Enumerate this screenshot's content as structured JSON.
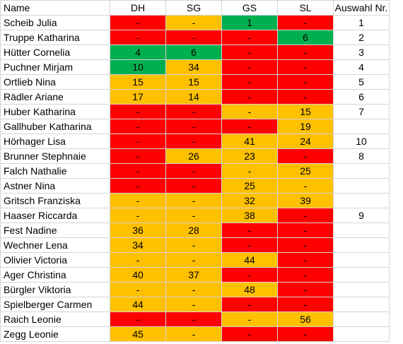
{
  "columns": [
    "Name",
    "DH",
    "SG",
    "GS",
    "SL",
    "Auswahl Nr."
  ],
  "colors": {
    "red": "#ff0000",
    "orange": "#ffc000",
    "green": "#00b050"
  },
  "rows": [
    {
      "name": "Scheib Julia",
      "cells": [
        [
          "-",
          "r"
        ],
        [
          "-",
          "o"
        ],
        [
          "1",
          "g"
        ],
        [
          "-",
          "r"
        ]
      ],
      "auswahl": "1"
    },
    {
      "name": "Truppe Katharina",
      "cells": [
        [
          "-",
          "r"
        ],
        [
          "-",
          "r"
        ],
        [
          "-",
          "r"
        ],
        [
          "6",
          "g"
        ]
      ],
      "auswahl": "2"
    },
    {
      "name": "Hütter Cornelia",
      "cells": [
        [
          "4",
          "g"
        ],
        [
          "6",
          "g"
        ],
        [
          "-",
          "r"
        ],
        [
          "-",
          "r"
        ]
      ],
      "auswahl": "3"
    },
    {
      "name": "Puchner Mirjam",
      "cells": [
        [
          "10",
          "g"
        ],
        [
          "34",
          "o"
        ],
        [
          "-",
          "r"
        ],
        [
          "-",
          "r"
        ]
      ],
      "auswahl": "4"
    },
    {
      "name": "Ortlieb Nina",
      "cells": [
        [
          "15",
          "o"
        ],
        [
          "15",
          "o"
        ],
        [
          "-",
          "r"
        ],
        [
          "-",
          "r"
        ]
      ],
      "auswahl": "5"
    },
    {
      "name": "Rädler Ariane",
      "cells": [
        [
          "17",
          "o"
        ],
        [
          "14",
          "o"
        ],
        [
          "-",
          "r"
        ],
        [
          "-",
          "r"
        ]
      ],
      "auswahl": "6"
    },
    {
      "name": "Huber Katharina",
      "cells": [
        [
          "-",
          "r"
        ],
        [
          "-",
          "r"
        ],
        [
          "-",
          "o"
        ],
        [
          "15",
          "o"
        ]
      ],
      "auswahl": "7"
    },
    {
      "name": "Gallhuber Katharina",
      "cells": [
        [
          "-",
          "r"
        ],
        [
          "-",
          "r"
        ],
        [
          "-",
          "r"
        ],
        [
          "19",
          "o"
        ]
      ],
      "auswahl": ""
    },
    {
      "name": "Hörhager Lisa",
      "cells": [
        [
          "-",
          "r"
        ],
        [
          "-",
          "r"
        ],
        [
          "41",
          "o"
        ],
        [
          "24",
          "o"
        ]
      ],
      "auswahl": "10"
    },
    {
      "name": "Brunner Stephnaie",
      "cells": [
        [
          "-",
          "r"
        ],
        [
          "26",
          "o"
        ],
        [
          "23",
          "o"
        ],
        [
          "-",
          "r"
        ]
      ],
      "auswahl": "8"
    },
    {
      "name": "Falch Nathalie",
      "cells": [
        [
          "-",
          "r"
        ],
        [
          "-",
          "r"
        ],
        [
          "-",
          "o"
        ],
        [
          "25",
          "o"
        ]
      ],
      "auswahl": ""
    },
    {
      "name": "Astner Nina",
      "cells": [
        [
          "-",
          "r"
        ],
        [
          "-",
          "r"
        ],
        [
          "25",
          "o"
        ],
        [
          "-",
          "o"
        ]
      ],
      "auswahl": ""
    },
    {
      "name": "Gritsch Franziska",
      "cells": [
        [
          "-",
          "o"
        ],
        [
          "-",
          "o"
        ],
        [
          "32",
          "o"
        ],
        [
          "39",
          "o"
        ]
      ],
      "auswahl": ""
    },
    {
      "name": "Haaser Riccarda",
      "cells": [
        [
          "-",
          "o"
        ],
        [
          "-",
          "o"
        ],
        [
          "38",
          "o"
        ],
        [
          "-",
          "r"
        ]
      ],
      "auswahl": "9"
    },
    {
      "name": "Fest Nadine",
      "cells": [
        [
          "36",
          "o"
        ],
        [
          "28",
          "o"
        ],
        [
          "-",
          "r"
        ],
        [
          "-",
          "r"
        ]
      ],
      "auswahl": ""
    },
    {
      "name": "Wechner Lena",
      "cells": [
        [
          "34",
          "o"
        ],
        [
          "-",
          "o"
        ],
        [
          "-",
          "r"
        ],
        [
          "-",
          "r"
        ]
      ],
      "auswahl": ""
    },
    {
      "name": "Olivier Victoria",
      "cells": [
        [
          "-",
          "o"
        ],
        [
          "-",
          "o"
        ],
        [
          "44",
          "o"
        ],
        [
          "-",
          "r"
        ]
      ],
      "auswahl": ""
    },
    {
      "name": "Ager Christina",
      "cells": [
        [
          "40",
          "o"
        ],
        [
          "37",
          "o"
        ],
        [
          "-",
          "r"
        ],
        [
          "-",
          "r"
        ]
      ],
      "auswahl": ""
    },
    {
      "name": "Bürgler Viktoria",
      "cells": [
        [
          "-",
          "o"
        ],
        [
          "-",
          "o"
        ],
        [
          "48",
          "o"
        ],
        [
          "-",
          "r"
        ]
      ],
      "auswahl": ""
    },
    {
      "name": "Spielberger Carmen",
      "cells": [
        [
          "44",
          "o"
        ],
        [
          "-",
          "o"
        ],
        [
          "-",
          "r"
        ],
        [
          "-",
          "r"
        ]
      ],
      "auswahl": ""
    },
    {
      "name": "Raich Leonie",
      "cells": [
        [
          "-",
          "r"
        ],
        [
          "-",
          "r"
        ],
        [
          "-",
          "o"
        ],
        [
          "56",
          "o"
        ]
      ],
      "auswahl": ""
    },
    {
      "name": "Zegg Leonie",
      "cells": [
        [
          "45",
          "o"
        ],
        [
          "-",
          "o"
        ],
        [
          "-",
          "r"
        ],
        [
          "-",
          "r"
        ]
      ],
      "auswahl": ""
    }
  ]
}
